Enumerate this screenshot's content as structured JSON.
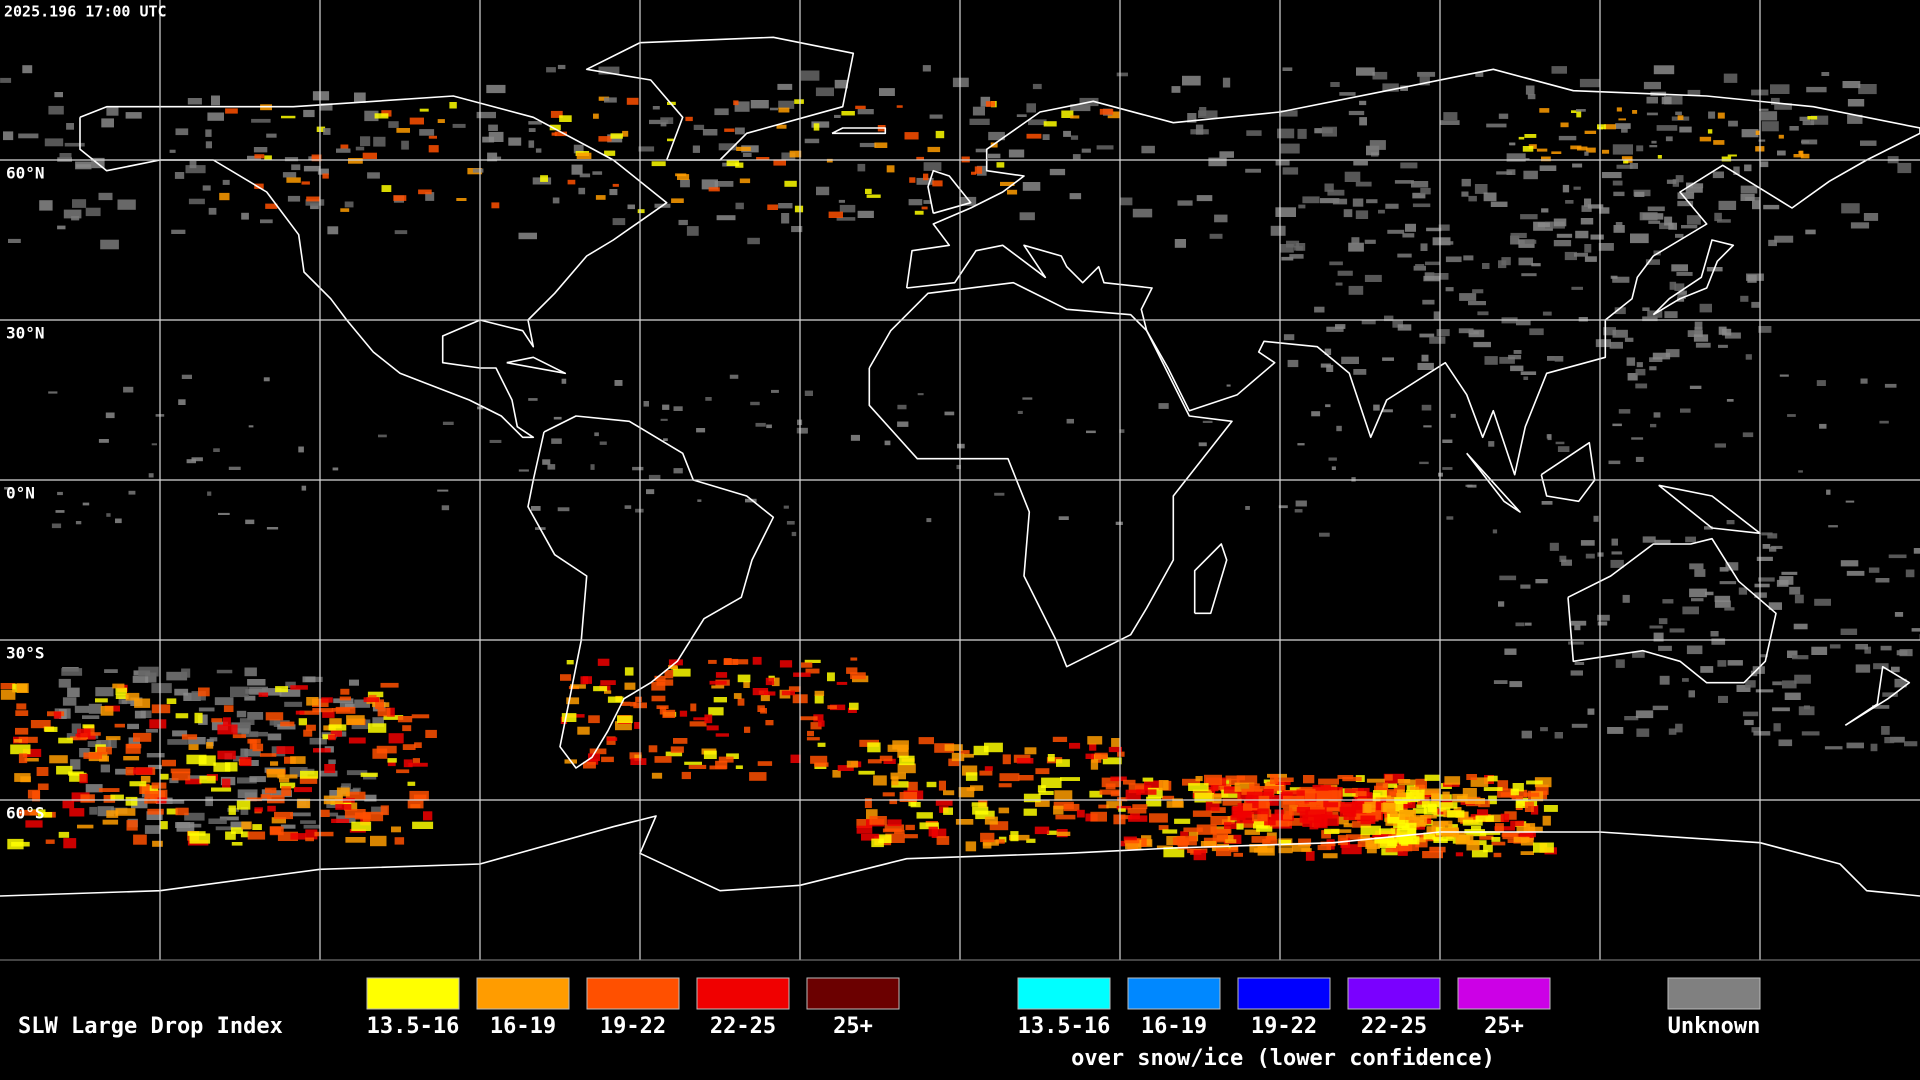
{
  "timestamp": "2025.196 17:00 UTC",
  "lat_labels": [
    "60°N",
    "30°N",
    "0°N",
    "30°S",
    "60°S"
  ],
  "legend": {
    "title": "SLW Large Drop Index",
    "items": [
      {
        "label": "13.5-16",
        "color": "#ffff00"
      },
      {
        "label": "16-19",
        "color": "#ff9c00"
      },
      {
        "label": "19-22",
        "color": "#ff5000"
      },
      {
        "label": "22-25",
        "color": "#f00000"
      },
      {
        "label": "25+",
        "color": "#6b0000"
      }
    ],
    "snow_ice_items": [
      {
        "label": "13.5-16",
        "color": "#00ffff"
      },
      {
        "label": "16-19",
        "color": "#0088ff"
      },
      {
        "label": "19-22",
        "color": "#0000ff"
      },
      {
        "label": "22-25",
        "color": "#7a00ff"
      },
      {
        "label": "25+",
        "color": "#cc00e6"
      }
    ],
    "snow_ice_caption": "over snow/ice (lower confidence)",
    "unknown": {
      "label": "Unknown",
      "color": "#808080"
    }
  }
}
